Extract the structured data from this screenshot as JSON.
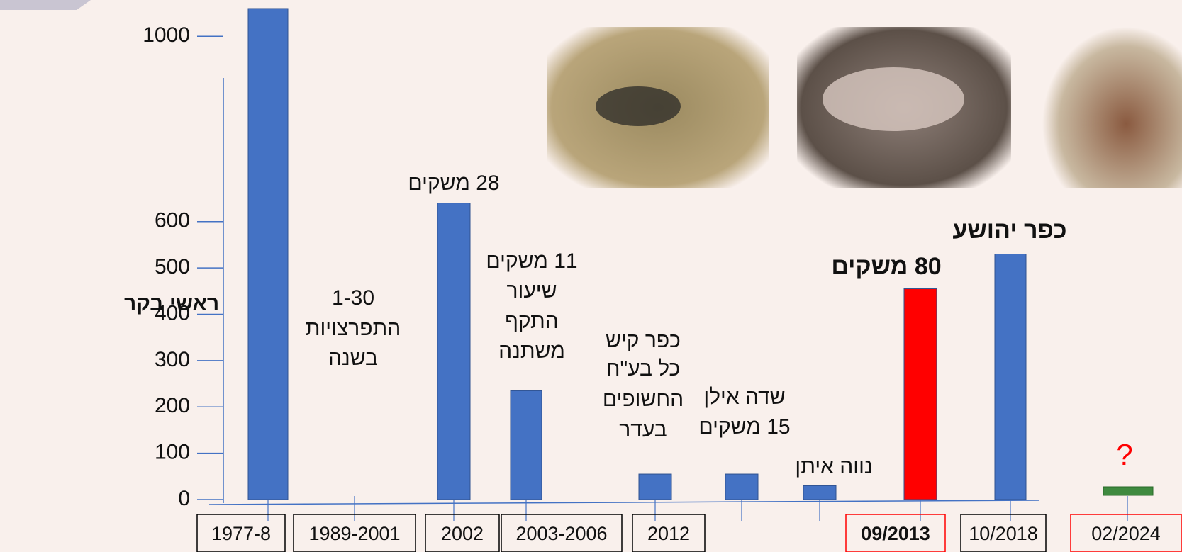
{
  "chart_data": {
    "type": "bar",
    "y_label": "ראשי בקר",
    "categories": [
      "1977-8",
      "1989-2001",
      "2002",
      "2003-2006",
      "2012",
      null,
      null,
      "09/2013",
      "10/2018",
      "02/2024"
    ],
    "values": [
      1060,
      null,
      640,
      235,
      55,
      55,
      30,
      455,
      530,
      null
    ],
    "colors": [
      "#4472c4",
      "#4472c4",
      "#4472c4",
      "#4472c4",
      "#4472c4",
      "#4472c4",
      "#4472c4",
      "#ff0000",
      "#4472c4",
      "#4472c4"
    ],
    "category_border_colors": [
      "#000000",
      "#000000",
      "#000000",
      "#000000",
      "#000000",
      null,
      null,
      "#ff0000",
      "#000000",
      "#ff0000"
    ],
    "ylim": [
      0,
      1060
    ],
    "yticks": [
      0,
      100,
      200,
      300,
      400,
      500,
      600,
      1000
    ],
    "annotations": [
      null,
      {
        "lines": [
          "1-30",
          "התפרצויות",
          "בשנה"
        ]
      },
      {
        "lines": [
          "28 משקים"
        ]
      },
      {
        "lines": [
          "11 משקים",
          "שיעור",
          "התקף",
          "משתנה"
        ]
      },
      {
        "lines": [
          "כפר קיש",
          "כל בע\"ח",
          "החשופים",
          "בעדר"
        ]
      },
      {
        "lines": [
          "שדה אילן",
          "15 משקים"
        ]
      },
      {
        "lines": [
          "נווה איתן"
        ]
      },
      {
        "lines": [
          "80 משקים"
        ],
        "bold": true
      },
      {
        "lines": [
          "כפר יהושע"
        ],
        "bold": true
      },
      {
        "lines": [
          "?"
        ],
        "color": "#ff0000"
      }
    ]
  }
}
